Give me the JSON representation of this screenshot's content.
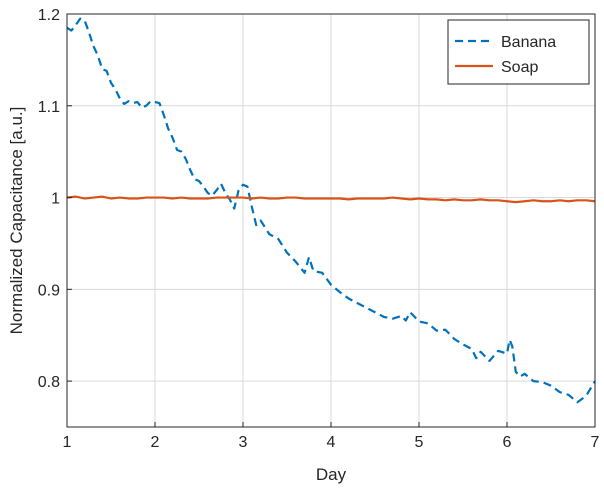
{
  "chart_data": {
    "type": "line",
    "xlabel": "Day",
    "ylabel": "Normalized Capacitance [a.u.]",
    "xlim": [
      1,
      7
    ],
    "ylim": [
      0.75,
      1.2
    ],
    "xticks": [
      1,
      2,
      3,
      4,
      5,
      6,
      7
    ],
    "xtick_labels": [
      "1",
      "2",
      "3",
      "4",
      "5",
      "6",
      "7"
    ],
    "yticks": [
      0.8,
      0.9,
      1.0,
      1.1,
      1.2
    ],
    "ytick_labels": [
      "0.8",
      "0.9",
      "1",
      "1.1",
      "1.2"
    ],
    "grid": true,
    "legend_position": "top-right",
    "series": [
      {
        "name": "Banana",
        "color": "#0072bd",
        "style": "dashed",
        "x": [
          1.0,
          1.05,
          1.1,
          1.15,
          1.2,
          1.25,
          1.3,
          1.35,
          1.4,
          1.45,
          1.5,
          1.55,
          1.6,
          1.65,
          1.7,
          1.75,
          1.8,
          1.85,
          1.9,
          1.95,
          2.0,
          2.05,
          2.1,
          2.15,
          2.2,
          2.25,
          2.3,
          2.35,
          2.4,
          2.45,
          2.5,
          2.55,
          2.6,
          2.65,
          2.7,
          2.75,
          2.8,
          2.85,
          2.9,
          2.95,
          3.0,
          3.05,
          3.1,
          3.15,
          3.2,
          3.3,
          3.4,
          3.5,
          3.6,
          3.7,
          3.75,
          3.8,
          3.9,
          4.0,
          4.1,
          4.2,
          4.3,
          4.4,
          4.5,
          4.6,
          4.7,
          4.8,
          4.85,
          4.9,
          5.0,
          5.1,
          5.2,
          5.3,
          5.4,
          5.5,
          5.6,
          5.65,
          5.7,
          5.8,
          5.9,
          6.0,
          6.03,
          6.06,
          6.1,
          6.15,
          6.2,
          6.3,
          6.4,
          6.5,
          6.6,
          6.7,
          6.8,
          6.9,
          7.0
        ],
        "y": [
          1.185,
          1.182,
          1.188,
          1.195,
          1.193,
          1.18,
          1.165,
          1.155,
          1.14,
          1.138,
          1.125,
          1.118,
          1.108,
          1.102,
          1.105,
          1.103,
          1.104,
          1.098,
          1.1,
          1.105,
          1.104,
          1.103,
          1.09,
          1.075,
          1.065,
          1.052,
          1.05,
          1.042,
          1.03,
          1.02,
          1.018,
          1.012,
          1.005,
          1.002,
          1.008,
          1.015,
          1.005,
          0.998,
          0.988,
          1.008,
          1.014,
          1.012,
          0.99,
          0.97,
          0.975,
          0.96,
          0.955,
          0.94,
          0.93,
          0.918,
          0.935,
          0.92,
          0.918,
          0.905,
          0.897,
          0.89,
          0.885,
          0.88,
          0.875,
          0.87,
          0.868,
          0.871,
          0.866,
          0.875,
          0.865,
          0.863,
          0.855,
          0.856,
          0.846,
          0.84,
          0.835,
          0.825,
          0.832,
          0.822,
          0.833,
          0.83,
          0.845,
          0.838,
          0.81,
          0.805,
          0.808,
          0.8,
          0.799,
          0.795,
          0.788,
          0.785,
          0.777,
          0.784,
          0.8
        ]
      },
      {
        "name": "Soap",
        "color": "#d95319",
        "style": "solid",
        "x": [
          1.0,
          1.1,
          1.2,
          1.3,
          1.4,
          1.5,
          1.6,
          1.7,
          1.8,
          1.9,
          2.0,
          2.1,
          2.2,
          2.3,
          2.4,
          2.5,
          2.6,
          2.7,
          2.8,
          2.9,
          3.0,
          3.1,
          3.2,
          3.3,
          3.4,
          3.5,
          3.6,
          3.7,
          3.8,
          3.9,
          4.0,
          4.1,
          4.2,
          4.3,
          4.4,
          4.5,
          4.6,
          4.7,
          4.8,
          4.9,
          5.0,
          5.1,
          5.2,
          5.3,
          5.4,
          5.5,
          5.6,
          5.7,
          5.8,
          5.9,
          6.0,
          6.1,
          6.2,
          6.3,
          6.4,
          6.5,
          6.6,
          6.7,
          6.8,
          6.9,
          7.0
        ],
        "y": [
          1.0,
          1.001,
          0.999,
          1.0,
          1.001,
          0.999,
          1.0,
          0.999,
          0.999,
          1.0,
          1.0,
          1.0,
          0.999,
          1.0,
          0.999,
          0.999,
          0.999,
          1.0,
          1.0,
          1.0,
          1.0,
          0.999,
          1.0,
          0.999,
          0.999,
          1.0,
          1.0,
          0.999,
          0.999,
          0.999,
          0.999,
          0.999,
          0.998,
          0.999,
          0.999,
          0.999,
          0.999,
          1.0,
          0.999,
          0.998,
          0.999,
          0.998,
          0.998,
          0.997,
          0.998,
          0.997,
          0.997,
          0.998,
          0.997,
          0.997,
          0.996,
          0.995,
          0.996,
          0.997,
          0.996,
          0.996,
          0.997,
          0.996,
          0.997,
          0.997,
          0.996
        ]
      }
    ]
  }
}
